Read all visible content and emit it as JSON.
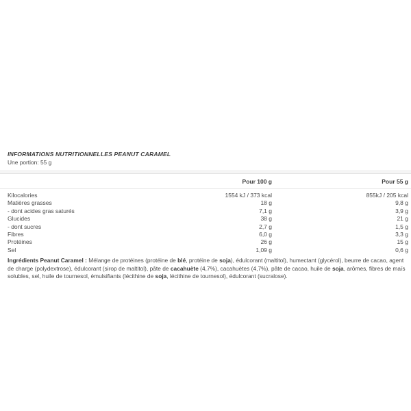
{
  "panel": {
    "title": "INFORMATIONS NUTRITIONNELLES PEANUT CARAMEL",
    "portion": "Une portion: 55 g"
  },
  "table": {
    "columns": [
      "Pour 100 g",
      "Pour 55 g"
    ],
    "rows": [
      {
        "label": "Kilocalories",
        "per100": "1554 kJ / 373 kcal",
        "per55": "855kJ / 205 kcal"
      },
      {
        "label": "Matières grasses",
        "per100": "18 g",
        "per55": "9,8 g"
      },
      {
        "label": "- dont acides gras saturés",
        "per100": "7,1 g",
        "per55": "3,9 g"
      },
      {
        "label": "Glucides",
        "per100": "38 g",
        "per55": "21 g"
      },
      {
        "label": "- dont sucres",
        "per100": "2,7 g",
        "per55": "1,5 g"
      },
      {
        "label": "Fibres",
        "per100": "6,0 g",
        "per55": "3,3 g"
      },
      {
        "label": "Protéines",
        "per100": "26 g",
        "per55": "15 g"
      },
      {
        "label": "Sel",
        "per100": "1,09 g",
        "per55": "0,6 g"
      }
    ]
  },
  "ingredients": {
    "segments": [
      {
        "text": "Ingrédients Peanut Caramel : ",
        "bold": true
      },
      {
        "text": "Mélange de protéines (protéine de ",
        "bold": false
      },
      {
        "text": "blé",
        "bold": true
      },
      {
        "text": ", protéine de ",
        "bold": false
      },
      {
        "text": "soja",
        "bold": true
      },
      {
        "text": "), édulcorant (maltitol), humectant (glycérol), beurre de cacao, agent de charge (polydextrose), édulcorant (sirop de maltitol), pâte de ",
        "bold": false
      },
      {
        "text": "cacahuète",
        "bold": true
      },
      {
        "text": " (4,7%), cacahuètes (4,7%), pâte de cacao, huile de ",
        "bold": false
      },
      {
        "text": "soja",
        "bold": true
      },
      {
        "text": ", arômes, fibres de maïs solubles, sel, huile de tournesol, émulsifiants (lécithine de ",
        "bold": false
      },
      {
        "text": "soja",
        "bold": true
      },
      {
        "text": ", lécithine de tournesol), édulcorant (sucralose).",
        "bold": false
      }
    ]
  },
  "colors": {
    "body_text": "#4a4a4a",
    "divider_band": "#f5f5f5",
    "header_rule": "#e9e9e9"
  }
}
